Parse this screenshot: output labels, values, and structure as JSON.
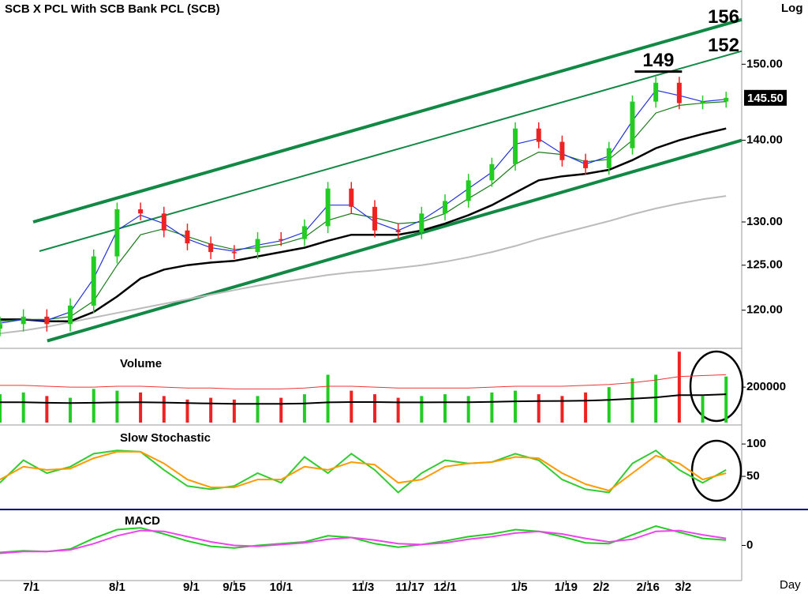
{
  "chart_data": [
    {
      "type": "candlestick",
      "title": "SCB  X  PCL  With  SCB  Bank  PCL  (SCB)",
      "scale": "log",
      "scale_label": "Log",
      "up_color": "#22cc22",
      "down_color": "#ee2222",
      "x": [
        0,
        6,
        12,
        18,
        24,
        30,
        36,
        42,
        48,
        54,
        60,
        66,
        72,
        78,
        84,
        90,
        96,
        102,
        108,
        114,
        120,
        126,
        132,
        138,
        144,
        150,
        156,
        162,
        168,
        174,
        180,
        186
      ],
      "open": [
        118,
        118.5,
        119.3,
        118.5,
        120.5,
        126,
        131.5,
        131,
        129,
        127.5,
        126.5,
        126.5,
        128,
        128,
        129.5,
        134,
        131.8,
        129,
        128.8,
        131,
        132.5,
        135,
        137,
        141.5,
        139.8,
        137.5,
        136.5,
        139,
        145,
        147.5,
        144.8,
        145
      ],
      "high": [
        119.3,
        120.1,
        120.1,
        121.3,
        126.8,
        132.3,
        132.3,
        131.8,
        129.8,
        128.3,
        127.3,
        128.8,
        128.8,
        130.3,
        134.8,
        134.8,
        132.6,
        129.8,
        131.8,
        133.3,
        135.8,
        137.8,
        142.3,
        142.3,
        140.6,
        138.3,
        139.8,
        145.8,
        148.3,
        148.3,
        145.8,
        146.3
      ],
      "low": [
        117.2,
        117.7,
        117.7,
        117.7,
        119.7,
        125.2,
        130.2,
        128.2,
        126.7,
        125.7,
        125.7,
        125.7,
        127.2,
        127.2,
        128.7,
        131,
        128.2,
        128,
        128,
        130.2,
        131.7,
        134.2,
        136.2,
        139,
        136.7,
        135.7,
        135.7,
        138.2,
        144.2,
        144,
        144,
        144.2
      ],
      "close": [
        118.5,
        119.3,
        118.5,
        120.5,
        126,
        131.5,
        131,
        129,
        127.5,
        126.5,
        126.5,
        128,
        128,
        129.5,
        134,
        131.8,
        129,
        128.8,
        131,
        132.5,
        135,
        137,
        141.5,
        139.8,
        137.5,
        136.5,
        139,
        145,
        147.5,
        144.8,
        145,
        145.5
      ],
      "series": [
        {
          "color": "#2233dd",
          "values": [
            118.6,
            119,
            118.9,
            119.8,
            123.5,
            129,
            130.8,
            129.8,
            128,
            127,
            126.6,
            127.3,
            127.8,
            128.8,
            132,
            132,
            130,
            129,
            130.2,
            132,
            134,
            136,
            139.5,
            140.2,
            138.3,
            137,
            138,
            142.5,
            146.5,
            145.8,
            145,
            145.3
          ]
        },
        {
          "color": "#1a7a1a",
          "values": [
            118.8,
            119,
            119,
            119.3,
            121,
            125,
            128.5,
            129.2,
            128.3,
            127.4,
            126.8,
            127,
            127.4,
            128.2,
            130.2,
            131,
            130.5,
            129.8,
            130,
            131,
            132.8,
            134.5,
            137,
            138.5,
            138.2,
            137.3,
            137.6,
            140,
            143.5,
            144.5,
            144.8,
            145
          ]
        },
        {
          "color": "#000000",
          "values": [
            119,
            119,
            118.8,
            118.8,
            119.8,
            121.5,
            123.5,
            124.5,
            125,
            125.3,
            125.5,
            126,
            126.5,
            127,
            127.8,
            128.5,
            128.5,
            128.5,
            129,
            129.8,
            130.8,
            132,
            133.5,
            135,
            135.5,
            135.8,
            136.3,
            137.5,
            139,
            140,
            140.8,
            141.5
          ]
        },
        {
          "color": "#bbbbbb",
          "values": [
            117.5,
            117.8,
            118.2,
            118.7,
            119.2,
            119.7,
            120.2,
            120.7,
            121.2,
            121.7,
            122.2,
            122.7,
            123.1,
            123.5,
            123.9,
            124.2,
            124.4,
            124.7,
            125,
            125.4,
            125.9,
            126.5,
            127.2,
            128,
            128.7,
            129.4,
            130.1,
            130.9,
            131.6,
            132.2,
            132.7,
            133.1
          ]
        }
      ],
      "channels": [
        {
          "color": "#118844",
          "x": [
            8.5,
            190
          ],
          "values": [
            130,
            156.2
          ]
        },
        {
          "color": "#118844",
          "x": [
            10.1,
            190
          ],
          "values": [
            126.6,
            151.8
          ]
        },
        {
          "color": "#118844",
          "x": [
            12.1,
            190
          ],
          "values": [
            116.7,
            140
          ]
        }
      ],
      "annotations": [
        {
          "value": 156,
          "label": "156"
        },
        {
          "value": 152,
          "label": "152"
        },
        {
          "value": 149,
          "label": "149",
          "x": [
            162.6,
            174.7
          ]
        }
      ],
      "last_price": {
        "value": 145.5,
        "label": "145.50"
      },
      "xlim": [
        0,
        190
      ],
      "ylim": [
        116,
        159
      ],
      "yticks": [
        {
          "value": 150,
          "label": "150.00"
        },
        {
          "value": 140,
          "label": "140.00"
        },
        {
          "value": 130,
          "label": "130.00"
        },
        {
          "value": 125,
          "label": "125.00"
        },
        {
          "value": 120,
          "label": "120.00"
        }
      ]
    },
    {
      "type": "bar",
      "title": "Volume",
      "x": [
        0,
        6,
        12,
        18,
        24,
        30,
        36,
        42,
        48,
        54,
        60,
        66,
        72,
        78,
        84,
        90,
        96,
        102,
        108,
        114,
        120,
        126,
        132,
        138,
        144,
        150,
        156,
        162,
        168,
        174,
        180,
        186
      ],
      "values": [
        160000,
        170000,
        150000,
        140000,
        190000,
        180000,
        170000,
        150000,
        130000,
        140000,
        130000,
        150000,
        140000,
        160000,
        270000,
        180000,
        160000,
        140000,
        150000,
        160000,
        150000,
        170000,
        180000,
        160000,
        150000,
        170000,
        200000,
        250000,
        270000,
        400000,
        150000,
        260000
      ],
      "series": [
        {
          "color": "#ee3333",
          "values": [
            210000,
            210000,
            205000,
            200000,
            200000,
            205000,
            205000,
            200000,
            195000,
            195000,
            190000,
            190000,
            190000,
            195000,
            205000,
            205000,
            200000,
            195000,
            195000,
            195000,
            195000,
            200000,
            205000,
            205000,
            205000,
            210000,
            215000,
            225000,
            240000,
            260000,
            265000,
            270000
          ]
        },
        {
          "color": "#000000",
          "values": [
            115000,
            115000,
            112000,
            110000,
            112000,
            114000,
            115000,
            113000,
            110000,
            108000,
            106000,
            106000,
            106000,
            108000,
            114000,
            116000,
            116000,
            114000,
            114000,
            115000,
            115000,
            117000,
            120000,
            121000,
            122000,
            124000,
            128000,
            135000,
            142000,
            155000,
            155000,
            160000
          ]
        }
      ],
      "xlim": [
        0,
        190
      ],
      "ylim": [
        0,
        410000
      ],
      "yticks": [
        200000
      ]
    },
    {
      "type": "line",
      "title": "Slow  Stochastic",
      "x": [
        0,
        6,
        12,
        18,
        24,
        30,
        36,
        42,
        48,
        54,
        60,
        66,
        72,
        78,
        84,
        90,
        96,
        102,
        108,
        114,
        120,
        126,
        132,
        138,
        144,
        150,
        156,
        162,
        168,
        174,
        180,
        186
      ],
      "series": [
        {
          "color": "#33cc33",
          "values": [
            40,
            75,
            55,
            65,
            85,
            90,
            88,
            60,
            35,
            30,
            35,
            55,
            40,
            80,
            55,
            85,
            60,
            25,
            55,
            75,
            70,
            72,
            85,
            75,
            45,
            30,
            25,
            70,
            90,
            60,
            40,
            60
          ]
        },
        {
          "color": "#ff9900",
          "values": [
            45,
            65,
            60,
            62,
            78,
            88,
            88,
            70,
            45,
            33,
            33,
            45,
            45,
            65,
            60,
            72,
            68,
            40,
            45,
            65,
            70,
            72,
            80,
            78,
            55,
            38,
            28,
            55,
            82,
            70,
            45,
            55
          ]
        }
      ],
      "xlim": [
        0,
        190
      ],
      "ylim": [
        0,
        127
      ],
      "yticks": [
        100,
        50
      ]
    },
    {
      "type": "line",
      "title": "MACD",
      "xlabel": "Day",
      "x": [
        0,
        6,
        12,
        18,
        24,
        30,
        36,
        42,
        48,
        54,
        60,
        66,
        72,
        78,
        84,
        90,
        96,
        102,
        108,
        114,
        120,
        126,
        132,
        138,
        144,
        150,
        156,
        162,
        168,
        174,
        180,
        186
      ],
      "series": [
        {
          "color": "#22cc22",
          "values": [
            -0.8,
            -0.6,
            -0.7,
            -0.4,
            0.8,
            1.8,
            2.0,
            1.3,
            0.5,
            -0.1,
            -0.3,
            0,
            0.2,
            0.4,
            1.1,
            0.9,
            0.2,
            -0.2,
            0.1,
            0.5,
            1.0,
            1.3,
            1.8,
            1.6,
            1.0,
            0.3,
            0.2,
            1.2,
            2.2,
            1.5,
            0.8,
            0.6
          ]
        },
        {
          "color": "#ee44ee",
          "values": [
            -0.9,
            -0.7,
            -0.7,
            -0.5,
            0.2,
            1.1,
            1.7,
            1.6,
            1.0,
            0.4,
            0,
            -0.1,
            0.1,
            0.3,
            0.7,
            0.9,
            0.6,
            0.2,
            0.1,
            0.3,
            0.7,
            1.0,
            1.4,
            1.6,
            1.3,
            0.8,
            0.4,
            0.7,
            1.6,
            1.7,
            1.2,
            0.8
          ]
        }
      ],
      "xlim": [
        0,
        190
      ],
      "ylim": [
        -4,
        4
      ],
      "yticks": [
        0
      ],
      "xticks": [
        {
          "value": 8,
          "label": "7/1"
        },
        {
          "value": 30,
          "label": "8/1"
        },
        {
          "value": 49,
          "label": "9/1"
        },
        {
          "value": 60,
          "label": "9/15"
        },
        {
          "value": 72,
          "label": "10/1"
        },
        {
          "value": 93,
          "label": "11/3"
        },
        {
          "value": 105,
          "label": "11/17"
        },
        {
          "value": 114,
          "label": "12/1"
        },
        {
          "value": 133,
          "label": "1/5"
        },
        {
          "value": 145,
          "label": "1/19"
        },
        {
          "value": 154,
          "label": "2/2"
        },
        {
          "value": 166,
          "label": "2/16"
        },
        {
          "value": 175,
          "label": "3/2"
        }
      ]
    }
  ]
}
